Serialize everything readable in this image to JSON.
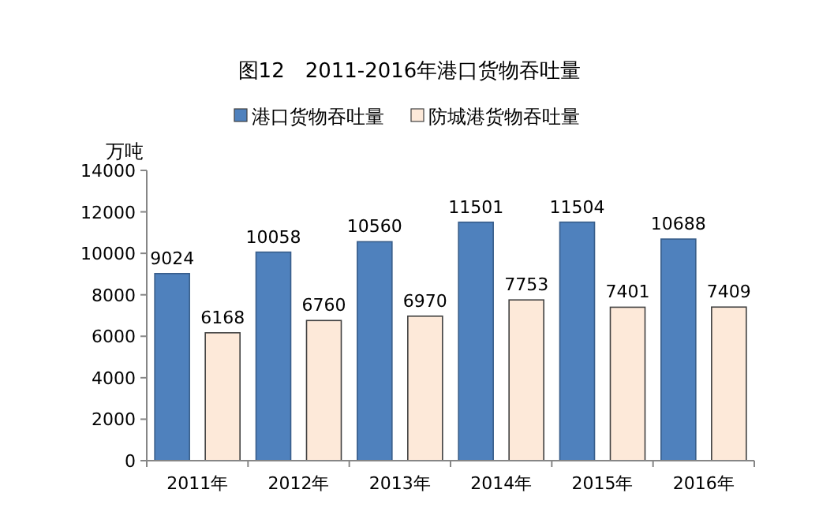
{
  "chart_data": {
    "type": "bar",
    "title": "图12　2011-2016年港口货物吞吐量",
    "ylabel": "万吨",
    "categories": [
      "2011年",
      "2012年",
      "2013年",
      "2014年",
      "2015年",
      "2016年"
    ],
    "series": [
      {
        "name": "港口货物吞吐量",
        "color": "#4f81bd",
        "values": [
          9024,
          10058,
          10560,
          11501,
          11504,
          10688
        ]
      },
      {
        "name": "防城港货物吞吐量",
        "color": "#fde9d9",
        "values": [
          6168,
          6760,
          6970,
          7753,
          7401,
          7409
        ]
      }
    ],
    "ylim": [
      0,
      14000
    ],
    "yticks": [
      0,
      2000,
      4000,
      6000,
      8000,
      10000,
      12000,
      14000
    ],
    "grid": false,
    "legend": "top",
    "data_labels": true
  }
}
